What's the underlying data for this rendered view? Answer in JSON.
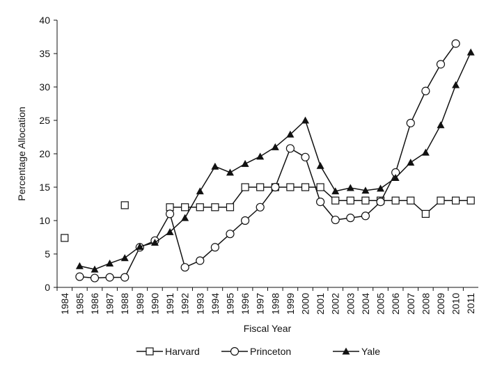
{
  "chart_data": {
    "type": "line",
    "y_label": "Percentage Allocation",
    "x_label": "Fiscal Year",
    "categories": [
      "1984",
      "1985",
      "1986",
      "1987",
      "1988",
      "1989",
      "1990",
      "1991",
      "1992",
      "1993",
      "1994",
      "1995",
      "1996",
      "1997",
      "1998",
      "1999",
      "2000",
      "2001",
      "2002",
      "2003",
      "2004",
      "2005",
      "2006",
      "2007",
      "2008",
      "2009",
      "2010",
      "2011"
    ],
    "series": [
      {
        "name": "Harvard",
        "color": "#111111",
        "marker": "square",
        "values": [
          7.4,
          null,
          null,
          null,
          12.3,
          null,
          null,
          12,
          12,
          12,
          12,
          12,
          15,
          15,
          15,
          15,
          15,
          15,
          13,
          13,
          13,
          13,
          13,
          13,
          11,
          13,
          13,
          13
        ]
      },
      {
        "name": "Princeton",
        "color": "#111111",
        "marker": "circle",
        "values": [
          null,
          1.6,
          1.4,
          1.5,
          1.5,
          6,
          7,
          11,
          3,
          4,
          6,
          8,
          10,
          12,
          15,
          20.8,
          19.5,
          12.8,
          10.1,
          10.4,
          10.7,
          12.8,
          17.2,
          24.6,
          29.4,
          33.4,
          36.5,
          null
        ]
      },
      {
        "name": "Yale",
        "color": "#111111",
        "marker": "triangle",
        "values": [
          null,
          3.2,
          2.7,
          3.6,
          4.4,
          6.1,
          6.7,
          8.3,
          10.4,
          14.4,
          18.1,
          17.2,
          18.5,
          19.6,
          21.0,
          22.9,
          25.0,
          18.2,
          14.4,
          14.9,
          14.5,
          14.8,
          16.4,
          18.7,
          20.2,
          24.3,
          30.3,
          35.2
        ]
      }
    ],
    "ylim": [
      0,
      40
    ],
    "yticks": [
      0,
      5,
      10,
      15,
      20,
      25,
      30,
      35,
      40
    ],
    "grid": false,
    "legend": "bottom"
  }
}
